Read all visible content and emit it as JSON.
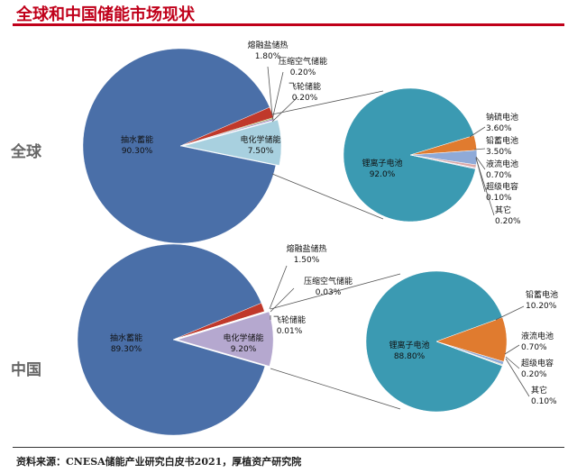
{
  "title": "全球和中国储能市场现状",
  "source": "资料来源：CNESA储能产业研究白皮书2021，厚植资产研究院",
  "colors": {
    "title": "#c0001a",
    "pumped": "#4a6fa8",
    "molten_salt": "#c0392b",
    "compressed_air": "#9cb95f",
    "flywheel": "#8e6bb8",
    "lithium": "#3b9ab2",
    "sodium_sulfur": "#e07b2f",
    "lead_acid": "#8faad8",
    "flow": "#dba8a8",
    "supercap": "#c6d69a",
    "other": "#b8a7d1",
    "global_electrochem": "#a8d0df",
    "china_electrochem": "#b5a8cf"
  },
  "chart_data": [
    {
      "type": "pie",
      "region": "全球",
      "title": "全球",
      "slices": [
        {
          "label": "抽水蓄能",
          "value": 90.3,
          "value_label": "90.30%",
          "color_key": "pumped"
        },
        {
          "label": "熔融盐储热",
          "value": 1.8,
          "value_label": "1.80%",
          "color_key": "molten_salt"
        },
        {
          "label": "压缩空气储能",
          "value": 0.2,
          "value_label": "0.20%",
          "color_key": "compressed_air"
        },
        {
          "label": "飞轮储能",
          "value": 0.2,
          "value_label": "0.20%",
          "color_key": "flywheel"
        },
        {
          "label": "电化学储能",
          "value": 7.5,
          "value_label": "7.50%",
          "color_key": "global_electrochem",
          "exploded": true
        }
      ],
      "breakdown": {
        "of": "电化学储能",
        "slices": [
          {
            "label": "锂离子电池",
            "value": 92.0,
            "value_label": "92.0%",
            "color_key": "lithium"
          },
          {
            "label": "钠硫电池",
            "value": 3.6,
            "value_label": "3.60%",
            "color_key": "sodium_sulfur"
          },
          {
            "label": "铅蓄电池",
            "value": 3.5,
            "value_label": "3.50%",
            "color_key": "lead_acid"
          },
          {
            "label": "液流电池",
            "value": 0.7,
            "value_label": "0.70%",
            "color_key": "flow"
          },
          {
            "label": "超级电容",
            "value": 0.1,
            "value_label": "0.10%",
            "color_key": "supercap"
          },
          {
            "label": "其它",
            "value": 0.2,
            "value_label": "0.20%",
            "color_key": "other"
          }
        ]
      }
    },
    {
      "type": "pie",
      "region": "中国",
      "title": "中国",
      "slices": [
        {
          "label": "抽水蓄能",
          "value": 89.3,
          "value_label": "89.30%",
          "color_key": "pumped"
        },
        {
          "label": "熔融盐储热",
          "value": 1.5,
          "value_label": "1.50%",
          "color_key": "molten_salt"
        },
        {
          "label": "压缩空气储能",
          "value": 0.03,
          "value_label": "0.03%",
          "color_key": "compressed_air"
        },
        {
          "label": "飞轮储能",
          "value": 0.01,
          "value_label": "0.01%",
          "color_key": "flywheel"
        },
        {
          "label": "电化学储能",
          "value": 9.2,
          "value_label": "9.20%",
          "color_key": "china_electrochem",
          "exploded": true
        }
      ],
      "breakdown": {
        "of": "电化学储能",
        "slices": [
          {
            "label": "锂离子电池",
            "value": 88.8,
            "value_label": "88.80%",
            "color_key": "lithium"
          },
          {
            "label": "铅蓄电池",
            "value": 10.2,
            "value_label": "10.20%",
            "color_key": "sodium_sulfur"
          },
          {
            "label": "液流电池",
            "value": 0.7,
            "value_label": "0.70%",
            "color_key": "lead_acid"
          },
          {
            "label": "超级电容",
            "value": 0.2,
            "value_label": "0.20%",
            "color_key": "supercap"
          },
          {
            "label": "其它",
            "value": 0.1,
            "value_label": "0.10%",
            "color_key": "other"
          }
        ]
      }
    }
  ]
}
